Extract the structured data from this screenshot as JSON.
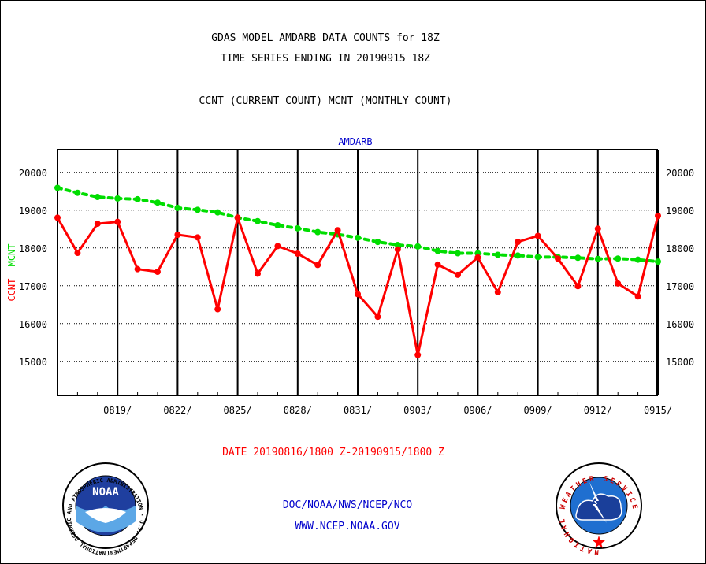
{
  "header": {
    "title_line1": "GDAS MODEL AMDARB DATA COUNTS for 18Z",
    "title_line2": "TIME SERIES ENDING IN 20190915 18Z",
    "subtitle": "CCNT (CURRENT COUNT) MCNT (MONTHLY COUNT)"
  },
  "chart_data": {
    "type": "line",
    "title": "AMDARB",
    "ylabel_parts": [
      "CCNT",
      "MCNT"
    ],
    "ylim": [
      14100,
      20600
    ],
    "yticks": [
      15000,
      16000,
      17000,
      18000,
      19000,
      20000
    ],
    "xlabel": "DATE 20190816/1800 Z-20190915/1800 Z",
    "x_dates": [
      "0816",
      "0817",
      "0818",
      "0819",
      "0820",
      "0821",
      "0822",
      "0823",
      "0824",
      "0825",
      "0826",
      "0827",
      "0828",
      "0829",
      "0830",
      "0831",
      "0901",
      "0902",
      "0903",
      "0904",
      "0905",
      "0906",
      "0907",
      "0908",
      "0909",
      "0910",
      "0911",
      "0912",
      "0913",
      "0914",
      "0915"
    ],
    "xtick_labels": [
      "0819/",
      "0822/",
      "0825/",
      "0828/",
      "0831/",
      "0903/",
      "0906/",
      "0909/",
      "0912/",
      "0915/"
    ],
    "grid": true,
    "series": [
      {
        "name": "CCNT",
        "color": "#ff0000",
        "values": [
          18800,
          17870,
          18640,
          18690,
          17440,
          17370,
          18350,
          18280,
          16380,
          18800,
          17320,
          18050,
          17850,
          17550,
          18470,
          16780,
          16180,
          17960,
          15170,
          17560,
          17290,
          17750,
          16830,
          18160,
          18320,
          17720,
          16990,
          18510,
          17060,
          16720,
          18850
        ]
      },
      {
        "name": "MCNT",
        "color": "#00dd00",
        "values": [
          19590,
          19460,
          19350,
          19310,
          19290,
          19200,
          19060,
          19010,
          18940,
          18800,
          18710,
          18600,
          18520,
          18420,
          18360,
          18270,
          18160,
          18080,
          18040,
          17920,
          17860,
          17860,
          17820,
          17800,
          17760,
          17760,
          17740,
          17710,
          17720,
          17690,
          17640
        ]
      }
    ]
  },
  "footer": {
    "line1": "DOC/NOAA/NWS/NCEP/NCO",
    "line2": "WWW.NCEP.NOAA.GOV"
  },
  "logos": {
    "noaa_text": "NOAA",
    "noaa_ring_text": "NATIONAL OCEANIC AND ATMOSPHERIC ADMINISTRATION · U.S. DEPARTMENT OF COMMERCE ·",
    "nws_ring_text": "NATIONAL WEATHER SERVICE"
  },
  "colors": {
    "title_text": "#000000",
    "link_text": "#0000cc",
    "date_text": "#ff0000",
    "ccnt": "#ff0000",
    "mcnt": "#00dd00"
  }
}
